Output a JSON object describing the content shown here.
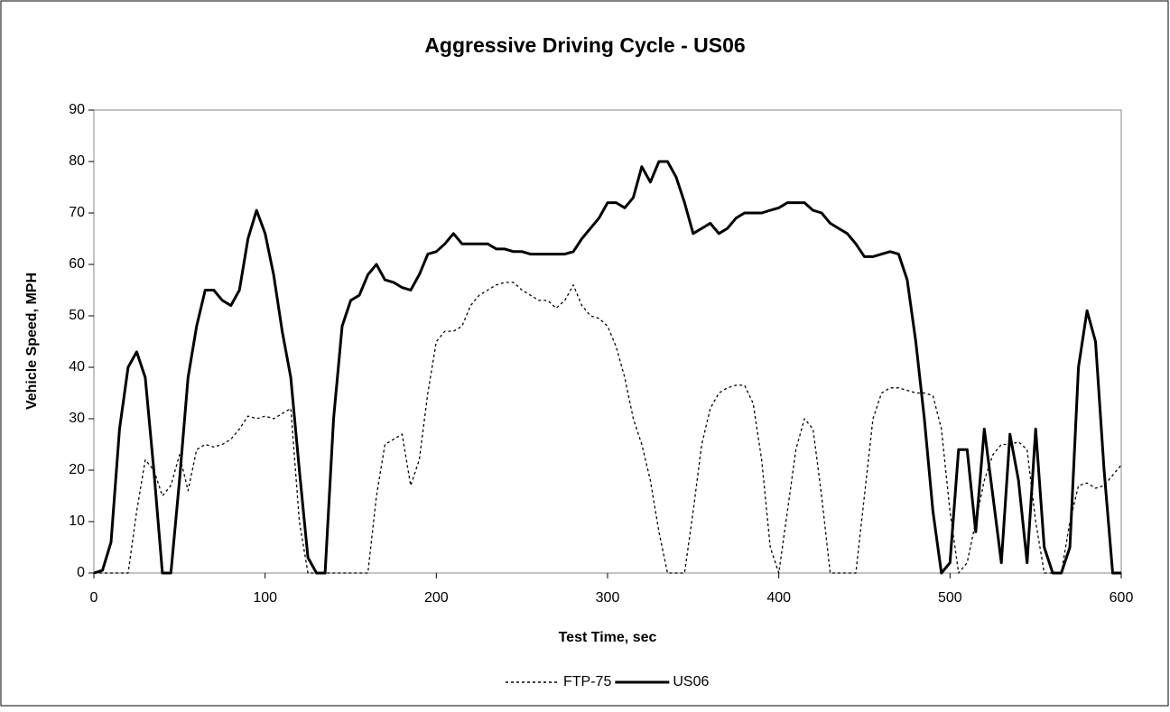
{
  "chart_data": {
    "type": "line",
    "title": "Aggressive Driving Cycle - US06",
    "x_label": "Test Time, sec",
    "y_label": "Vehicle Speed, MPH",
    "x": [
      0,
      5,
      10,
      15,
      20,
      25,
      30,
      35,
      40,
      45,
      50,
      55,
      60,
      65,
      70,
      75,
      80,
      85,
      90,
      95,
      100,
      105,
      110,
      115,
      120,
      125,
      130,
      135,
      140,
      145,
      150,
      155,
      160,
      165,
      170,
      175,
      180,
      185,
      190,
      195,
      200,
      205,
      210,
      215,
      220,
      225,
      230,
      235,
      240,
      245,
      250,
      255,
      260,
      265,
      270,
      275,
      280,
      285,
      290,
      295,
      300,
      305,
      310,
      315,
      320,
      325,
      330,
      335,
      340,
      345,
      350,
      355,
      360,
      365,
      370,
      375,
      380,
      385,
      390,
      395,
      400,
      405,
      410,
      415,
      420,
      425,
      430,
      435,
      440,
      445,
      450,
      455,
      460,
      465,
      470,
      475,
      480,
      485,
      490,
      495,
      500,
      505,
      510,
      515,
      520,
      525,
      530,
      535,
      540,
      545,
      550,
      555,
      560,
      565,
      570,
      575,
      580,
      585,
      590,
      595,
      600
    ],
    "series": [
      {
        "name": "FTP-75",
        "color": "#000000",
        "dash": true,
        "values": [
          0,
          0,
          0,
          0,
          0,
          12,
          22,
          20,
          15,
          17,
          23,
          16,
          24,
          25,
          24.5,
          25,
          26,
          28,
          30.5,
          30,
          30.5,
          30,
          31,
          32,
          10,
          0,
          0,
          0,
          0,
          0,
          0,
          0,
          0,
          15,
          25,
          26,
          27,
          17,
          22,
          35,
          45,
          47,
          47,
          48,
          52,
          54,
          55,
          56,
          56.5,
          56.5,
          55,
          54,
          53,
          53,
          51.5,
          53,
          56,
          52,
          50,
          49.5,
          48,
          44,
          38,
          30,
          25,
          18,
          8,
          0,
          0,
          0,
          12,
          25,
          32,
          35,
          36,
          36.5,
          36.5,
          33,
          22,
          5,
          0,
          12,
          24,
          30,
          28,
          15,
          0,
          0,
          0,
          0,
          15,
          30,
          35,
          36,
          36,
          35.5,
          35,
          35,
          34.5,
          28,
          12,
          0,
          2,
          10,
          18,
          23,
          25,
          25,
          25.5,
          24,
          10,
          0,
          0,
          0,
          10,
          17,
          17.5,
          16.5,
          17,
          19,
          21
        ]
      },
      {
        "name": "US06",
        "color": "#000000",
        "dash": false,
        "values": [
          0,
          0.5,
          6,
          28,
          40,
          43,
          38,
          20,
          0,
          0,
          18,
          38,
          48,
          55,
          55,
          53,
          52,
          55,
          65,
          70.5,
          66,
          58,
          47,
          38,
          20,
          3,
          0,
          0,
          30,
          48,
          53,
          54,
          58,
          60,
          57,
          56.5,
          55.5,
          55,
          58,
          62,
          62.5,
          64,
          66,
          64,
          64,
          64,
          64,
          63,
          63,
          62.5,
          62.5,
          62,
          62,
          62,
          62,
          62,
          62.5,
          65,
          67,
          69,
          72,
          72,
          71,
          73,
          79,
          76,
          80,
          80,
          77,
          72,
          66,
          67,
          68,
          66,
          67,
          69,
          70,
          70,
          70,
          70.5,
          71,
          72,
          72,
          72,
          70.5,
          70,
          68,
          67,
          66,
          64,
          61.5,
          61.5,
          62,
          62.5,
          62,
          57,
          45,
          30,
          12,
          0,
          2,
          24,
          24,
          8,
          28,
          15,
          2,
          27,
          18,
          2,
          28,
          5,
          0,
          0,
          5,
          40,
          51,
          45,
          20,
          0,
          0
        ]
      }
    ],
    "xlim": [
      0,
      600
    ],
    "ylim": [
      0,
      90
    ],
    "xticks": [
      0,
      100,
      200,
      300,
      400,
      500,
      600
    ],
    "yticks": [
      0,
      10,
      20,
      30,
      40,
      50,
      60,
      70,
      80,
      90
    ],
    "grid": false,
    "legend": "bottom"
  }
}
